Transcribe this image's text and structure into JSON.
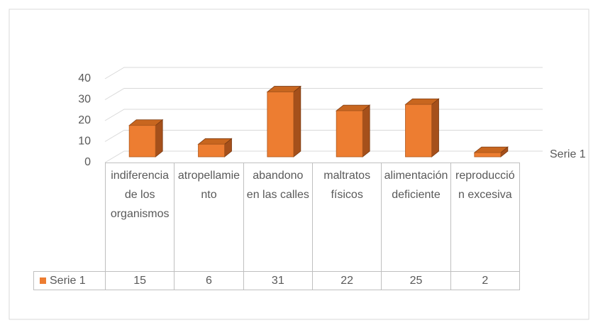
{
  "chart_data": {
    "type": "bar",
    "categories": [
      "indiferencia de los organismos",
      "atropellamiento",
      "abandono en las calles",
      "maltratos físicos",
      "alimentación deficiente",
      "reproducción excesiva"
    ],
    "series": [
      {
        "name": "Serie 1",
        "color": "#ed7d31",
        "values": [
          15,
          6,
          31,
          22,
          25,
          2
        ]
      }
    ],
    "ylim": [
      0,
      40
    ],
    "yticks": [
      0,
      10,
      20,
      30,
      40
    ],
    "grid": true
  }
}
